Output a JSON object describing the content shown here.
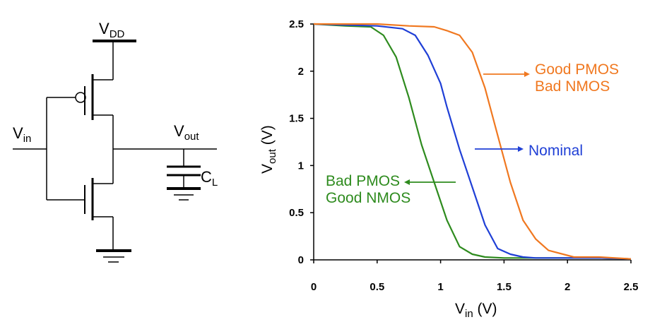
{
  "circuit": {
    "vdd_main": "V",
    "vdd_sub": "DD",
    "vin_main": "V",
    "vin_sub": "in",
    "vout_main": "V",
    "vout_sub": "out",
    "cl_main": "C",
    "cl_sub": "L"
  },
  "chart_data": {
    "type": "line",
    "xlabel_main": "V",
    "xlabel_sub": "in",
    "xlabel_unit": " (V)",
    "ylabel_main": "V",
    "ylabel_sub": "out",
    "ylabel_unit": " (V)",
    "xlim": [
      0,
      2.5
    ],
    "ylim": [
      0,
      2.5
    ],
    "x_ticks": [
      "0",
      "0.5",
      "1",
      "1.5",
      "2",
      "2.5"
    ],
    "y_ticks": [
      "0",
      "0.5",
      "1",
      "1.5",
      "2",
      "2.5"
    ],
    "grid": false,
    "series": [
      {
        "key": "bad_pmos_good_nmos",
        "name_lines": [
          "Bad PMOS",
          "Good NMOS"
        ],
        "color": "#2e8b1e",
        "x": [
          0,
          0.25,
          0.45,
          0.55,
          0.65,
          0.75,
          0.85,
          0.95,
          1.05,
          1.15,
          1.25,
          1.35,
          1.5,
          1.75,
          2.0,
          2.25,
          2.5
        ],
        "y": [
          2.5,
          2.48,
          2.47,
          2.38,
          2.15,
          1.72,
          1.22,
          0.82,
          0.42,
          0.14,
          0.06,
          0.03,
          0.02,
          0.02,
          0.02,
          0.02,
          0.01
        ]
      },
      {
        "key": "nominal",
        "name_lines": [
          "Nominal"
        ],
        "color": "#1f3fd6",
        "x": [
          0,
          0.5,
          0.7,
          0.8,
          0.9,
          1.0,
          1.05,
          1.15,
          1.25,
          1.35,
          1.45,
          1.55,
          1.65,
          1.75,
          2.0,
          2.25,
          2.5
        ],
        "y": [
          2.5,
          2.48,
          2.45,
          2.38,
          2.17,
          1.87,
          1.62,
          1.17,
          0.77,
          0.37,
          0.12,
          0.06,
          0.03,
          0.02,
          0.02,
          0.02,
          0.01
        ]
      },
      {
        "key": "good_pmos_bad_nmos",
        "name_lines": [
          "Good PMOS",
          "Bad NMOS"
        ],
        "color": "#f07820",
        "x": [
          0,
          0.5,
          0.75,
          0.95,
          1.05,
          1.15,
          1.25,
          1.35,
          1.45,
          1.55,
          1.65,
          1.75,
          1.85,
          2.05,
          2.25,
          2.5
        ],
        "y": [
          2.5,
          2.5,
          2.48,
          2.47,
          2.43,
          2.38,
          2.2,
          1.82,
          1.32,
          0.82,
          0.42,
          0.22,
          0.1,
          0.03,
          0.03,
          0.01
        ]
      }
    ]
  }
}
